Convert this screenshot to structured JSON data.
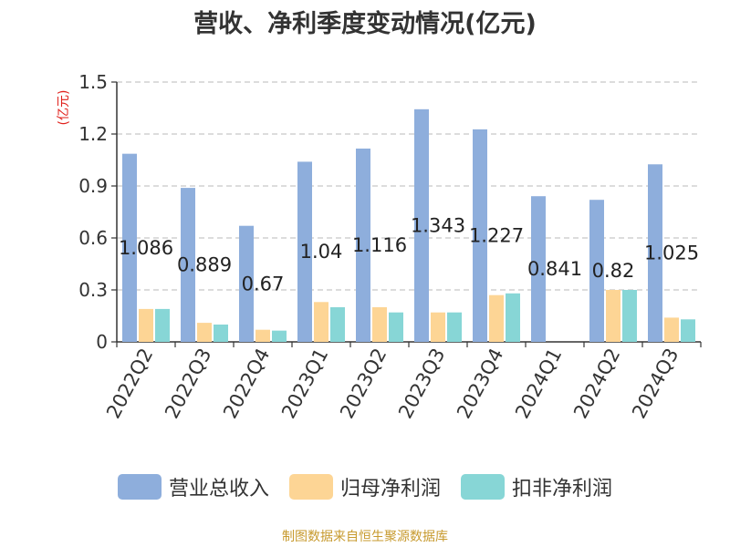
{
  "chart_data": {
    "type": "bar",
    "title": "营收、净利季度变动情况(亿元)",
    "ylabel": "(亿元)",
    "xlabel": "",
    "ylim": [
      0,
      1.5
    ],
    "yticks": [
      "0",
      "0.3",
      "0.6",
      "0.9",
      "1.2",
      "1.5"
    ],
    "grid": true,
    "legend_position": "bottom",
    "categories": [
      "2022Q2",
      "2022Q3",
      "2022Q4",
      "2023Q1",
      "2023Q2",
      "2023Q3",
      "2023Q4",
      "2024Q1",
      "2024Q2",
      "2024Q3"
    ],
    "series": [
      {
        "name": "营业总收入",
        "color": "#8eaedc",
        "values": [
          1.086,
          0.889,
          0.67,
          1.04,
          1.116,
          1.343,
          1.227,
          0.841,
          0.82,
          1.025
        ],
        "data_labels": [
          "1.086",
          "0.889",
          "0.67",
          "1.04",
          "1.116",
          "1.343",
          "1.227",
          "0.841",
          "0.82",
          "1.025"
        ]
      },
      {
        "name": "归母净利润",
        "color": "#fdd595",
        "values": [
          0.19,
          0.11,
          0.07,
          0.23,
          0.2,
          0.17,
          0.27,
          null,
          0.3,
          0.14
        ]
      },
      {
        "name": "扣非净利润",
        "color": "#87d6d6",
        "values": [
          0.19,
          0.1,
          0.065,
          0.2,
          0.17,
          0.17,
          0.28,
          null,
          0.3,
          0.13
        ]
      }
    ],
    "source_note": "制图数据来自恒生聚源数据库"
  }
}
